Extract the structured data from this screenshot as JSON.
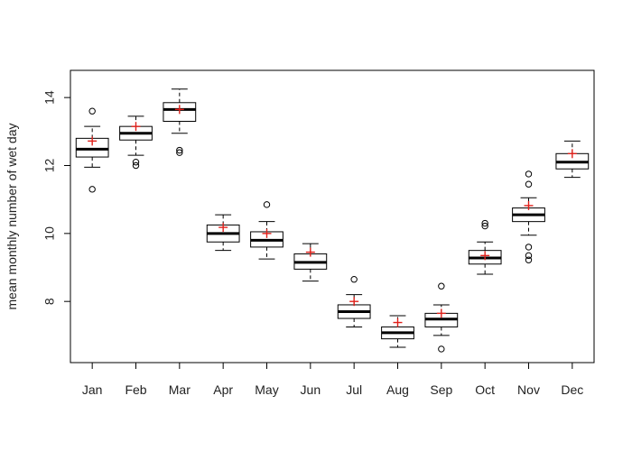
{
  "chart_data": {
    "type": "boxplot",
    "ylabel": "mean monthly number of wet day",
    "xlabel": "",
    "title": "",
    "ylim": [
      6.2,
      14.8
    ],
    "yticks": [
      8,
      10,
      12,
      14
    ],
    "categories": [
      "Jan",
      "Feb",
      "Mar",
      "Apr",
      "May",
      "Jun",
      "Jul",
      "Aug",
      "Sep",
      "Oct",
      "Nov",
      "Dec"
    ],
    "grid": false,
    "colors": {
      "box": "#000000",
      "mean_marker": "#e0201a"
    },
    "boxes": [
      {
        "month": "Jan",
        "whisker_low": 11.95,
        "q1": 12.25,
        "median": 12.48,
        "q3": 12.8,
        "whisker_high": 13.15,
        "mean": 12.72,
        "outliers": [
          13.6,
          11.3
        ]
      },
      {
        "month": "Feb",
        "whisker_low": 12.3,
        "q1": 12.75,
        "median": 12.95,
        "q3": 13.15,
        "whisker_high": 13.45,
        "mean": 13.15,
        "outliers": [
          12.1,
          12.0
        ]
      },
      {
        "month": "Mar",
        "whisker_low": 12.95,
        "q1": 13.3,
        "median": 13.65,
        "q3": 13.85,
        "whisker_high": 14.25,
        "mean": 13.65,
        "outliers": [
          12.45,
          12.38
        ]
      },
      {
        "month": "Apr",
        "whisker_low": 9.5,
        "q1": 9.75,
        "median": 10.0,
        "q3": 10.25,
        "whisker_high": 10.55,
        "mean": 10.18,
        "outliers": []
      },
      {
        "month": "May",
        "whisker_low": 9.25,
        "q1": 9.6,
        "median": 9.8,
        "q3": 10.05,
        "whisker_high": 10.35,
        "mean": 10.0,
        "outliers": [
          10.85
        ]
      },
      {
        "month": "Jun",
        "whisker_low": 8.6,
        "q1": 8.95,
        "median": 9.15,
        "q3": 9.4,
        "whisker_high": 9.7,
        "mean": 9.45,
        "outliers": []
      },
      {
        "month": "Jul",
        "whisker_low": 7.25,
        "q1": 7.5,
        "median": 7.7,
        "q3": 7.9,
        "whisker_high": 8.2,
        "mean": 8.0,
        "outliers": [
          8.65
        ]
      },
      {
        "month": "Aug",
        "whisker_low": 6.65,
        "q1": 6.9,
        "median": 7.08,
        "q3": 7.25,
        "whisker_high": 7.58,
        "mean": 7.38,
        "outliers": []
      },
      {
        "month": "Sep",
        "whisker_low": 7.0,
        "q1": 7.25,
        "median": 7.48,
        "q3": 7.65,
        "whisker_high": 7.9,
        "mean": 7.65,
        "outliers": [
          8.45,
          6.6
        ]
      },
      {
        "month": "Oct",
        "whisker_low": 8.8,
        "q1": 9.1,
        "median": 9.28,
        "q3": 9.5,
        "whisker_high": 9.75,
        "mean": 9.35,
        "outliers": [
          10.3,
          10.22
        ]
      },
      {
        "month": "Nov",
        "whisker_low": 9.95,
        "q1": 10.35,
        "median": 10.55,
        "q3": 10.75,
        "whisker_high": 11.05,
        "mean": 10.82,
        "outliers": [
          11.75,
          11.45,
          9.6,
          9.35,
          9.22
        ]
      },
      {
        "month": "Dec",
        "whisker_low": 11.65,
        "q1": 11.9,
        "median": 12.1,
        "q3": 12.35,
        "whisker_high": 12.72,
        "mean": 12.35,
        "outliers": []
      }
    ]
  }
}
